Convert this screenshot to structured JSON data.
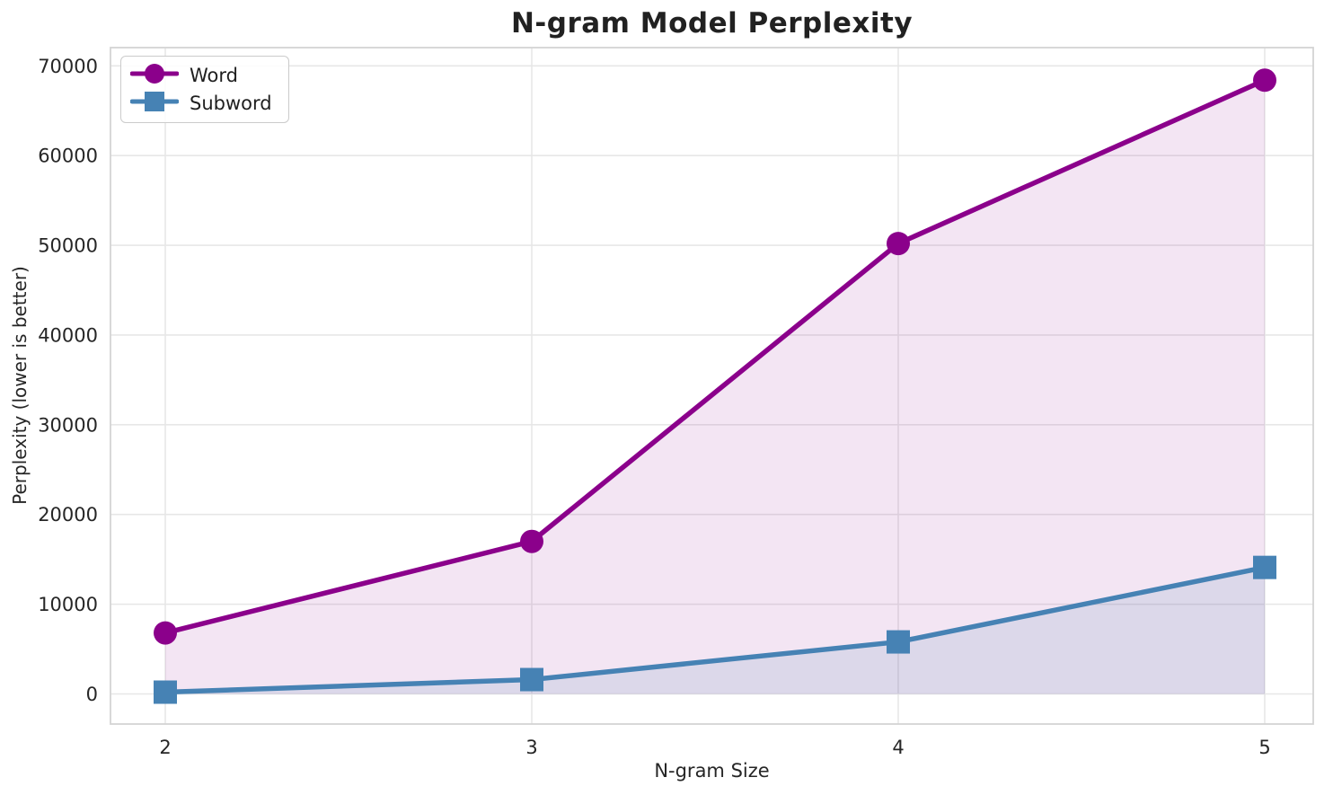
{
  "title": "N-gram Model Perplexity",
  "axes": {
    "xlabel": "N-gram Size",
    "ylabel": "Perplexity (lower is better)"
  },
  "legend": {
    "position": "upper left",
    "items": [
      {
        "label": "Word",
        "marker": "circle",
        "color": "#8B008B"
      },
      {
        "label": "Subword",
        "marker": "square",
        "color": "#4682B4"
      }
    ]
  },
  "colors": {
    "word_line": "#8B008B",
    "subword_line": "#4682B4",
    "grid": "#e7e7e7",
    "spine": "#d4d4d4",
    "tick_text": "#262626",
    "title_text": "#212121"
  },
  "chart_data": {
    "type": "line",
    "title": "N-gram Model Perplexity",
    "xlabel": "N-gram Size",
    "ylabel": "Perplexity (lower is better)",
    "x": [
      2,
      3,
      4,
      5
    ],
    "xtick_labels": [
      "2",
      "3",
      "4",
      "5"
    ],
    "yticks": [
      0,
      10000,
      20000,
      30000,
      40000,
      50000,
      60000,
      70000
    ],
    "ytick_labels": [
      "0",
      "10000",
      "20000",
      "30000",
      "40000",
      "50000",
      "60000",
      "70000"
    ],
    "ylim": [
      0,
      70000
    ],
    "grid": true,
    "legend_position": "upper left",
    "area_fill_to_zero": true,
    "series": [
      {
        "name": "Word",
        "marker": "circle",
        "color": "#8B008B",
        "fill_alpha": 0.1,
        "values": [
          6800,
          17000,
          50200,
          68400
        ]
      },
      {
        "name": "Subword",
        "marker": "square",
        "color": "#4682B4",
        "fill_alpha": 0.13,
        "values": [
          200,
          1600,
          5800,
          14100
        ]
      }
    ]
  }
}
